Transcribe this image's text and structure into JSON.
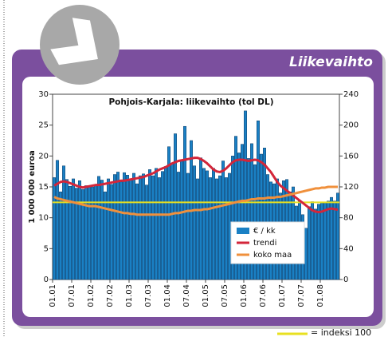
{
  "header": {
    "title": "Liikevaihto"
  },
  "chart_data": {
    "type": "bar",
    "title": "Pohjois-Karjala: liikevaihto (tol DL)",
    "y_label": "1 000 000 euroa",
    "categories": [
      "01.01",
      null,
      null,
      null,
      null,
      null,
      "07.01",
      null,
      null,
      null,
      null,
      null,
      "01.02",
      null,
      null,
      null,
      null,
      null,
      "07.02",
      null,
      null,
      null,
      null,
      null,
      "01.03",
      null,
      null,
      null,
      null,
      null,
      "07.03",
      null,
      null,
      null,
      null,
      null,
      "01.04",
      null,
      null,
      null,
      null,
      null,
      "07.04",
      null,
      null,
      null,
      null,
      null,
      "01.05",
      null,
      null,
      null,
      null,
      null,
      "07.05",
      null,
      null,
      null,
      null,
      null,
      "01.06",
      null,
      null,
      null,
      null,
      null,
      "07.06",
      null,
      null,
      null,
      null,
      null,
      "01.07",
      null,
      null,
      null,
      null,
      null,
      "07.07",
      null,
      null,
      null,
      null,
      null,
      "01.08",
      null,
      null,
      null,
      null,
      null
    ],
    "series": [
      {
        "name": "€ / kk",
        "type": "bar",
        "color": "#1a80c4",
        "values": [
          16.5,
          19.3,
          14.2,
          18.4,
          16.2,
          15.1,
          16.3,
          14.8,
          16.0,
          14.6,
          15.2,
          15.0,
          15.0,
          15.3,
          16.7,
          16.1,
          14.2,
          16.3,
          15.4,
          17.0,
          17.4,
          15.8,
          17.3,
          16.9,
          16.3,
          17.2,
          15.5,
          16.8,
          17.1,
          15.3,
          17.8,
          16.8,
          18.0,
          16.5,
          17.5,
          18.3,
          21.5,
          18.8,
          23.6,
          17.4,
          19.2,
          24.8,
          17.2,
          22.5,
          18.4,
          16.3,
          19.7,
          18.0,
          17.6,
          16.5,
          18.0,
          16.3,
          16.8,
          19.2,
          16.5,
          17.2,
          20.0,
          23.2,
          20.5,
          21.9,
          27.3,
          19.6,
          22.0,
          18.6,
          25.7,
          20.3,
          21.3,
          17.0,
          15.8,
          15.5,
          16.3,
          14.0,
          16.0,
          16.2,
          14.2,
          15.0,
          11.9,
          12.8,
          10.5,
          8.3,
          11.8,
          12.6,
          11.4,
          12.2,
          12.4,
          12.4,
          12.7,
          13.3,
          12.7,
          14.0
        ]
      },
      {
        "name": "trendi",
        "type": "line",
        "color": "#d3263a",
        "values": [
          15.2,
          15.5,
          15.8,
          15.9,
          15.8,
          15.6,
          15.4,
          15.2,
          15.0,
          14.9,
          15.0,
          15.1,
          15.2,
          15.3,
          15.3,
          15.4,
          15.5,
          15.6,
          15.7,
          15.8,
          15.9,
          16.0,
          16.0,
          16.1,
          16.2,
          16.3,
          16.4,
          16.5,
          16.6,
          16.8,
          17.0,
          17.2,
          17.5,
          17.8,
          18.0,
          18.2,
          18.5,
          18.8,
          19.0,
          19.2,
          19.3,
          19.4,
          19.5,
          19.6,
          19.7,
          19.7,
          19.5,
          19.2,
          18.8,
          18.3,
          17.8,
          17.5,
          17.4,
          17.6,
          18.0,
          18.5,
          19.0,
          19.3,
          19.4,
          19.4,
          19.3,
          19.2,
          19.3,
          19.4,
          19.3,
          19.0,
          18.6,
          18.0,
          17.4,
          16.6,
          15.8,
          15.2,
          14.8,
          14.4,
          14.0,
          13.6,
          13.2,
          12.8,
          12.4,
          12.0,
          11.6,
          11.2,
          11.0,
          10.9,
          11.0,
          11.2,
          11.4,
          11.5,
          11.4,
          11.3
        ]
      },
      {
        "name": "koko maa",
        "type": "line",
        "axis": "y2",
        "color": "#f0903c",
        "values": [
          107,
          105,
          104,
          103,
          102,
          101,
          100,
          99,
          98,
          97,
          96,
          95,
          95,
          95,
          94,
          93,
          92,
          91,
          90,
          89,
          88,
          87,
          86,
          86,
          85,
          85,
          84,
          84,
          84,
          84,
          84,
          84,
          84,
          84,
          84,
          84,
          84,
          85,
          86,
          86,
          87,
          88,
          89,
          89,
          90,
          90,
          90,
          91,
          91,
          92,
          93,
          94,
          95,
          96,
          97,
          98,
          99,
          100,
          101,
          102,
          102,
          103,
          104,
          104,
          105,
          105,
          105,
          106,
          106,
          106,
          107,
          107,
          108,
          109,
          110,
          111,
          112,
          113,
          114,
          115,
          116,
          117,
          118,
          118,
          119,
          119,
          120,
          120,
          120,
          120
        ]
      }
    ],
    "ylim": [
      0,
      30
    ],
    "yticks": [
      0,
      5,
      10,
      15,
      20,
      25,
      30
    ],
    "y2lim": [
      0,
      240
    ],
    "y2ticks": [
      0,
      40,
      80,
      120,
      160,
      200,
      240
    ],
    "reference": {
      "value": 100,
      "axis": "y2",
      "label": "= indeksi 100",
      "color": "#e8e020"
    }
  }
}
